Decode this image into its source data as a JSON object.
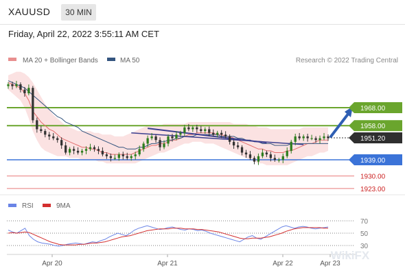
{
  "header": {
    "symbol": "XAUUSD",
    "timeframe": "30 MIN",
    "datetime": "Friday, April 22, 2022 3:55:11 AM CET"
  },
  "colors": {
    "green": "#6aa52d",
    "blue": "#3b73d8",
    "red": "#e87a7a",
    "ma20": "#e46f6f",
    "ma50": "#34557f",
    "band": "#f9d6d6",
    "bull": "#2e7d1e",
    "bear": "#333333",
    "rsi": "#6a84e6",
    "rsi_ma": "#d32f2f"
  },
  "chart_data": [
    {
      "type": "candlestick",
      "title": "",
      "legend": [
        {
          "name": "MA 20 + Bollinger Bands",
          "color": "#e88f8f"
        },
        {
          "name": "MA 50",
          "color": "#34557f"
        }
      ],
      "legend_position": "top-left",
      "credit": "Research © 2022 Trading Central",
      "y_range": [
        1920,
        1992
      ],
      "x_ticks": [
        "Apr 20",
        "Apr 21",
        "Apr 22",
        "Apr 23"
      ],
      "current_price": "1951.20",
      "levels": [
        {
          "value": 1968.0,
          "label": "1968.00",
          "kind": "resistance",
          "style": "green-line"
        },
        {
          "value": 1958.0,
          "label": "1958.00",
          "kind": "resistance",
          "style": "green-line"
        },
        {
          "value": 1939.0,
          "label": "1939.00",
          "kind": "support",
          "style": "blue-line"
        },
        {
          "value": 1930.0,
          "label": "1930.00",
          "kind": "support",
          "style": "red-thin-line"
        },
        {
          "value": 1923.0,
          "label": "1923.00",
          "kind": "support",
          "style": "red-thin-line"
        }
      ],
      "forecast_arrow": {
        "from": 1951.2,
        "to": 1968.0,
        "direction": "up"
      },
      "closes": [
        1981,
        1980,
        1981,
        1978,
        1976,
        1979,
        1961,
        1956,
        1955,
        1953,
        1952,
        1951,
        1950,
        1947,
        1943,
        1945,
        1944,
        1943,
        1944,
        1945,
        1946,
        1945,
        1944,
        1942,
        1941,
        1940,
        1940,
        1942,
        1941,
        1940,
        1941,
        1942,
        1945,
        1948,
        1951,
        1952,
        1950,
        1946,
        1948,
        1952,
        1951,
        1953,
        1954,
        1957,
        1956,
        1957,
        1956,
        1955,
        1956,
        1954,
        1953,
        1954,
        1953,
        1952,
        1949,
        1947,
        1946,
        1943,
        1942,
        1940,
        1938,
        1941,
        1943,
        1942,
        1940,
        1939,
        1939,
        1941,
        1944,
        1949,
        1952,
        1951,
        1952,
        1951,
        1951,
        1950,
        1951,
        1952,
        1951
      ],
      "ma20": [
        1982,
        1981,
        1980,
        1979,
        1976,
        1972,
        1966,
        1963,
        1960,
        1958,
        1956,
        1955,
        1953,
        1951,
        1950,
        1949,
        1948,
        1947,
        1946,
        1946,
        1945,
        1945,
        1944,
        1943,
        1943,
        1942,
        1942,
        1942,
        1942,
        1942,
        1942,
        1943,
        1944,
        1945,
        1946,
        1947,
        1947,
        1948,
        1948,
        1949,
        1950,
        1950,
        1951,
        1952,
        1953,
        1953,
        1954,
        1954,
        1954,
        1954,
        1954,
        1953,
        1953,
        1952,
        1952,
        1951,
        1950,
        1949,
        1948,
        1947,
        1946,
        1945,
        1945,
        1944,
        1944,
        1943,
        1943,
        1943,
        1944,
        1944,
        1945,
        1946,
        1947,
        1948,
        1948,
        1949,
        1950,
        1950,
        1950
      ],
      "ma50": [
        1983,
        1982,
        1981,
        1980,
        1979,
        1977,
        1975,
        1973,
        1971,
        1969,
        1967,
        1965,
        1963,
        1962,
        1960,
        1959,
        1958,
        1957,
        1955,
        1954,
        1953,
        1952,
        1951,
        1950,
        1949,
        1948,
        1947,
        1946,
        1946,
        1945,
        1945,
        1945,
        1946,
        1946,
        1947,
        1948,
        1948,
        1949,
        1949,
        1950,
        1950,
        1951,
        1951,
        1952,
        1952,
        1952,
        1953,
        1953,
        1953,
        1953,
        1953,
        1953,
        1952,
        1952,
        1952,
        1952,
        1951,
        1951,
        1950,
        1950,
        1949,
        1949,
        1948,
        1948,
        1948,
        1947,
        1947,
        1947,
        1947,
        1948,
        1948,
        1948,
        1948,
        1948,
        1948,
        1948,
        1948,
        1948,
        1948
      ],
      "band_upper": [
        1986,
        1987,
        1988,
        1988,
        1987,
        1985,
        1982,
        1978,
        1974,
        1970,
        1967,
        1964,
        1962,
        1960,
        1958,
        1957,
        1956,
        1955,
        1955,
        1955,
        1955,
        1954,
        1954,
        1953,
        1953,
        1953,
        1952,
        1952,
        1952,
        1953,
        1954,
        1955,
        1956,
        1957,
        1958,
        1958,
        1958,
        1958,
        1959,
        1959,
        1959,
        1959,
        1959,
        1959,
        1960,
        1960,
        1960,
        1960,
        1960,
        1960,
        1960,
        1960,
        1960,
        1960,
        1960,
        1959,
        1959,
        1959,
        1959,
        1958,
        1958,
        1957,
        1957,
        1957,
        1956,
        1956,
        1956,
        1956,
        1956,
        1956,
        1956,
        1956,
        1957,
        1957,
        1957,
        1957,
        1957,
        1957,
        1957
      ],
      "band_lower": [
        1978,
        1976,
        1974,
        1972,
        1968,
        1962,
        1955,
        1950,
        1946,
        1944,
        1943,
        1942,
        1941,
        1941,
        1941,
        1940,
        1940,
        1940,
        1939,
        1939,
        1939,
        1939,
        1938,
        1938,
        1937,
        1937,
        1937,
        1937,
        1937,
        1937,
        1937,
        1937,
        1938,
        1939,
        1940,
        1941,
        1942,
        1943,
        1943,
        1944,
        1945,
        1946,
        1947,
        1948,
        1948,
        1949,
        1949,
        1949,
        1948,
        1948,
        1948,
        1947,
        1946,
        1945,
        1944,
        1943,
        1942,
        1941,
        1940,
        1939,
        1938,
        1937,
        1937,
        1936,
        1936,
        1936,
        1936,
        1936,
        1936,
        1937,
        1938,
        1939,
        1940,
        1941,
        1941,
        1942,
        1943,
        1943,
        1944
      ]
    },
    {
      "type": "line",
      "title": "",
      "legend": [
        {
          "name": "RSI",
          "color": "#6a84e6"
        },
        {
          "name": "9MA",
          "color": "#d32f2f"
        }
      ],
      "legend_position": "top-left",
      "y_ticks": [
        70,
        50,
        30
      ],
      "y_range": [
        10,
        80
      ],
      "series": [
        {
          "name": "RSI",
          "values": [
            55,
            52,
            50,
            54,
            58,
            46,
            40,
            36,
            34,
            33,
            32,
            30,
            29,
            30,
            32,
            33,
            34,
            33,
            32,
            34,
            36,
            35,
            38,
            40,
            44,
            47,
            50,
            48,
            46,
            50,
            55,
            58,
            60,
            62,
            60,
            58,
            56,
            57,
            59,
            60,
            58,
            56,
            55,
            57,
            56,
            54,
            55,
            53,
            50,
            48,
            46,
            44,
            42,
            40,
            38,
            36,
            40,
            44,
            46,
            42,
            40,
            44,
            48,
            52,
            56,
            60,
            62,
            60,
            58,
            60,
            61,
            60,
            58,
            57,
            58,
            59,
            60
          ]
        },
        {
          "name": "9MA",
          "values": [
            50,
            51,
            50,
            51,
            52,
            51,
            48,
            45,
            42,
            39,
            36,
            34,
            32,
            31,
            31,
            31,
            31,
            32,
            32,
            33,
            34,
            34,
            35,
            36,
            38,
            40,
            42,
            44,
            45,
            46,
            48,
            50,
            52,
            54,
            55,
            56,
            57,
            57,
            57,
            58,
            58,
            58,
            57,
            57,
            57,
            56,
            56,
            55,
            54,
            53,
            52,
            50,
            48,
            46,
            44,
            42,
            41,
            41,
            42,
            42,
            42,
            43,
            44,
            46,
            48,
            50,
            53,
            55,
            57,
            58,
            59,
            59,
            59,
            59,
            59,
            58,
            58
          ]
        }
      ]
    }
  ],
  "watermark": "WikiFX"
}
